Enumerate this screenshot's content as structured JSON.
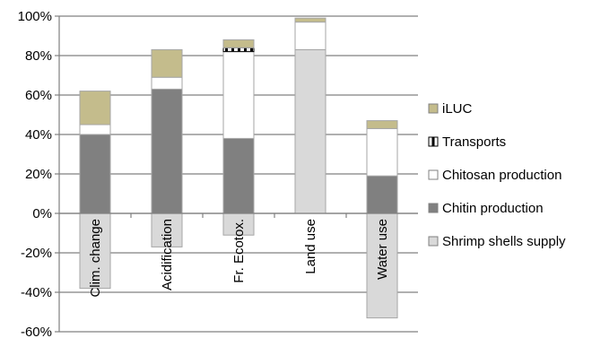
{
  "chart_data": {
    "type": "bar",
    "stacked": true,
    "categories": [
      "Clim. change",
      "Acidification",
      "Fr. Ecotox.",
      "Land use",
      "Water use"
    ],
    "series": [
      {
        "name": "Shrimp shells supply",
        "color": "#d9d9d9",
        "values": [
          -38,
          -17,
          -11,
          83,
          -53
        ]
      },
      {
        "name": "Chitin production",
        "color": "#808080",
        "values": [
          40,
          63,
          38,
          0,
          19
        ]
      },
      {
        "name": "Chitosan production",
        "color": "#ffffff",
        "values": [
          5,
          6,
          44,
          14,
          24
        ]
      },
      {
        "name": "Transports",
        "color": "#000000",
        "values": [
          0,
          0,
          2,
          0,
          0
        ]
      },
      {
        "name": "iLUC",
        "color": "#c4bc8c",
        "values": [
          17,
          14,
          4,
          2,
          4
        ]
      }
    ],
    "legend_order": [
      "iLUC",
      "Transports",
      "Chitosan production",
      "Chitin production",
      "Shrimp shells supply"
    ],
    "yticks": [
      "-60%",
      "-40%",
      "-20%",
      "0%",
      "20%",
      "40%",
      "60%",
      "80%",
      "100%"
    ],
    "ylim": [
      -60,
      100
    ],
    "grid": true,
    "legend_position": "right"
  }
}
